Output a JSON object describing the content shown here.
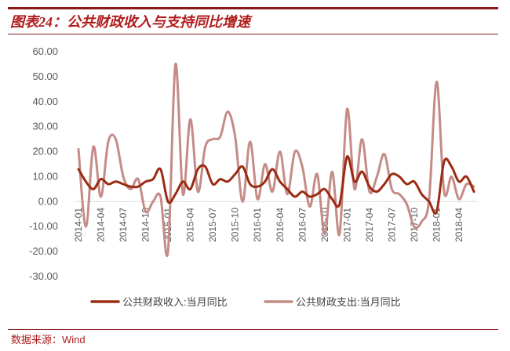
{
  "figure": {
    "title": "图表24：公共财政收入与支持同比增速",
    "source": "数据来源：Wind"
  },
  "colors": {
    "accent": "#8b1a1a",
    "series_income": "#9b2b12",
    "series_expend": "#c48b87",
    "axis_text": "#595959",
    "axis_line": "#d9d9d9"
  },
  "chart_data": {
    "type": "line",
    "title": "",
    "xlabel": "",
    "ylabel": "",
    "ylim": [
      -30,
      60
    ],
    "grid": false,
    "legend": "bottom",
    "y_ticks": [
      "60.00",
      "50.00",
      "40.00",
      "30.00",
      "20.00",
      "10.00",
      "0.00",
      "-10.00",
      "-20.00",
      "-30.00"
    ],
    "x_ticks": [
      "2014-01",
      "2014-04",
      "2014-07",
      "2014-10",
      "2015-01",
      "2015-04",
      "2015-07",
      "2015-10",
      "2016-01",
      "2016-04",
      "2016-07",
      "2016-10",
      "2017-01",
      "2017-04",
      "2017-07",
      "2017-10",
      "2018-01",
      "2018-04"
    ],
    "x": [
      "2014-01",
      "2014-02",
      "2014-03",
      "2014-04",
      "2014-05",
      "2014-06",
      "2014-07",
      "2014-08",
      "2014-09",
      "2014-10",
      "2014-11",
      "2014-12",
      "2015-01",
      "2015-02",
      "2015-03",
      "2015-04",
      "2015-05",
      "2015-06",
      "2015-07",
      "2015-08",
      "2015-09",
      "2015-10",
      "2015-11",
      "2015-12",
      "2016-01",
      "2016-02",
      "2016-03",
      "2016-04",
      "2016-05",
      "2016-06",
      "2016-07",
      "2016-08",
      "2016-09",
      "2016-10",
      "2016-11",
      "2016-12",
      "2017-01",
      "2017-02",
      "2017-03",
      "2017-04",
      "2017-05",
      "2017-06",
      "2017-07",
      "2017-08",
      "2017-09",
      "2017-10",
      "2017-11",
      "2017-12",
      "2018-01",
      "2018-02",
      "2018-03",
      "2018-04",
      "2018-05",
      "2018-06"
    ],
    "series": [
      {
        "name": "公共财政收入:当月同比",
        "values": [
          13,
          8,
          5,
          9,
          7,
          8,
          7,
          6,
          6,
          8,
          9,
          13,
          0,
          3,
          8,
          5,
          13,
          14,
          7,
          9,
          8,
          11,
          14,
          7,
          6,
          8,
          13,
          8,
          5,
          2,
          4,
          2,
          3,
          5,
          1,
          -1,
          18,
          8,
          12,
          6,
          4,
          7,
          11,
          10,
          7,
          8,
          3,
          0,
          -4,
          16,
          14,
          8,
          10,
          4
        ]
      },
      {
        "name": "公共财政支出:当月同比",
        "values": [
          21,
          -10,
          22,
          2,
          24,
          25,
          10,
          5,
          9,
          -4,
          0,
          2,
          -20,
          55,
          3,
          33,
          4,
          22,
          25,
          26,
          36,
          26,
          0,
          24,
          1,
          15,
          4,
          20,
          3,
          20,
          14,
          -2,
          11,
          -13,
          12,
          -13,
          37,
          5,
          25,
          4,
          10,
          19,
          5,
          3,
          -1,
          -10,
          -8,
          1,
          48,
          4,
          10,
          1,
          7,
          6
        ]
      }
    ]
  }
}
